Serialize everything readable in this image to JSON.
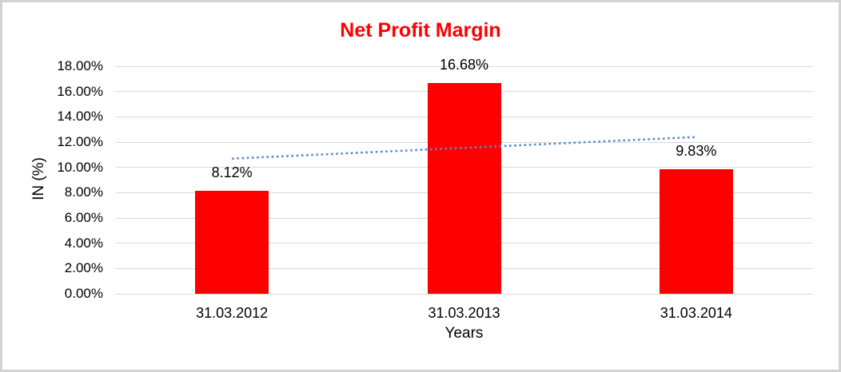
{
  "frame": {
    "border_color": "#d3d3d3",
    "background_color": "#ffffff"
  },
  "chart_data": {
    "type": "bar",
    "title": "Net Profit Margin",
    "title_color": "#ff0000",
    "categories": [
      "31.03.2012",
      "31.03.2013",
      "31.03.2014"
    ],
    "series": [
      {
        "name": "Net Profit Margin",
        "values": [
          8.12,
          16.68,
          9.83
        ]
      }
    ],
    "data_labels": [
      "8.12%",
      "16.68%",
      "9.83%"
    ],
    "xlabel": "Years",
    "ylabel": "IN (%)",
    "ylim": [
      0,
      18
    ],
    "ytick_step": 2,
    "ytick_labels": [
      "0.00%",
      "2.00%",
      "4.00%",
      "6.00%",
      "8.00%",
      "10.00%",
      "12.00%",
      "14.00%",
      "16.00%",
      "18.00%"
    ],
    "grid": true,
    "legend": "none",
    "bar_color": "#ff0000",
    "gridline_color": "#d9d9d9",
    "text_color": "#000000",
    "trendline": {
      "type": "linear",
      "style": "dotted",
      "color": "#5b8ac6",
      "start_value": 10.69,
      "end_value": 12.4
    }
  }
}
